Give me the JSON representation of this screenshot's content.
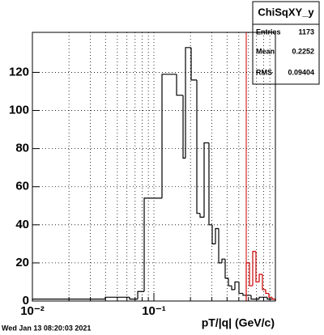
{
  "chart_data": {
    "type": "histogram",
    "xlabel": "pT/|q| (GeV/c)",
    "footer": "Wed Jan 13 08:20:03 2021",
    "xlog": true,
    "xlim": [
      0.01,
      1
    ],
    "ylim": [
      0,
      141
    ],
    "xticks": [
      {
        "value": 0.01,
        "label": "10⁻²"
      },
      {
        "value": 0.1,
        "label": "10⁻¹"
      }
    ],
    "xgrid_ticks": [
      0.02,
      0.03,
      0.04,
      0.05,
      0.06,
      0.07,
      0.08,
      0.09,
      0.2,
      0.3,
      0.4,
      0.5,
      0.6,
      0.7,
      0.8,
      0.9
    ],
    "yticks": [
      0,
      20,
      40,
      60,
      80,
      100,
      120
    ],
    "grid": true,
    "series": [
      {
        "color": "#000000",
        "bins": [
          0.01,
          0.0398,
          0.0631,
          0.0736,
          0.0832,
          0.1166,
          0.1537,
          0.1738,
          0.182,
          0.2026,
          0.2256,
          0.2399,
          0.259,
          0.2839,
          0.302,
          0.321,
          0.3414,
          0.3631,
          0.3861,
          0.4106,
          0.4365,
          0.4642,
          0.5012,
          0.5412,
          0.631,
          0.7356,
          0.8577,
          1
        ],
        "values": [
          1,
          2,
          1,
          5,
          54,
          119,
          108,
          75,
          133,
          116,
          46,
          44,
          83,
          40,
          30,
          38,
          20,
          22,
          12,
          8,
          6,
          10,
          4,
          3,
          1,
          2,
          1
        ]
      },
      {
        "color": "#cc0000",
        "bins": [
          0.5754,
          0.6117,
          0.6506,
          0.6918,
          0.7356,
          0.7822,
          0.8318,
          0.8844,
          0.9404,
          1
        ],
        "values": [
          20,
          8,
          26,
          10,
          14,
          6,
          4,
          2,
          1
        ]
      }
    ],
    "stats": {
      "title": "ChiSqXY_y",
      "entries_label": "Entries",
      "entries": 1173,
      "mean_label": "Mean",
      "mean": 0.2252,
      "rms_label": "RMS",
      "rms": 0.09404
    }
  }
}
